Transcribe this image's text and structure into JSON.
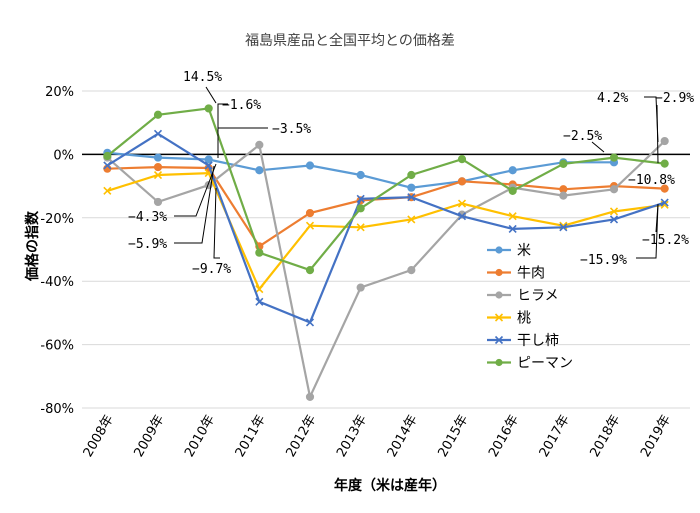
{
  "chart_data": {
    "type": "line",
    "title": "福島県産品と全国平均との価格差",
    "xlabel": "年度（米は産年）",
    "ylabel": "価格の指数",
    "categories": [
      "2008年",
      "2009年",
      "2010年",
      "2011年",
      "2012年",
      "2013年",
      "2014年",
      "2015年",
      "2016年",
      "2017年",
      "2018年",
      "2019年"
    ],
    "yticks": [
      "20%",
      "0%",
      "-20%",
      "-40%",
      "-60%",
      "-80%"
    ],
    "ylim": [
      -80,
      20
    ],
    "legend_position": "right",
    "series": [
      {
        "name": "米",
        "color": "#5B9BD5",
        "marker": "circle",
        "values": [
          0.5,
          -1.0,
          -1.6,
          -5.0,
          -3.5,
          -6.5,
          -10.5,
          -8.5,
          -5.0,
          -2.5,
          -2.5,
          null
        ]
      },
      {
        "name": "牛肉",
        "color": "#ED7D31",
        "marker": "circle",
        "values": [
          -4.5,
          -4.0,
          -4.3,
          -29.0,
          -18.5,
          -14.5,
          -13.5,
          -8.5,
          -9.5,
          -11.0,
          -10.0,
          -10.8
        ]
      },
      {
        "name": "ヒラメ",
        "color": "#A5A5A5",
        "marker": "circle",
        "values": [
          -1.0,
          -15.0,
          -9.7,
          3.0,
          -76.5,
          -42.0,
          -36.5,
          -19.0,
          -10.5,
          -13.0,
          -11.0,
          4.2
        ]
      },
      {
        "name": "桃",
        "color": "#FFC000",
        "marker": "x",
        "values": [
          -11.5,
          -6.5,
          -5.9,
          -42.5,
          -22.5,
          -23.0,
          -20.5,
          -15.5,
          -19.5,
          -22.5,
          -18.0,
          -15.9
        ]
      },
      {
        "name": "干し柿",
        "color": "#4472C4",
        "marker": "x",
        "values": [
          -3.5,
          6.5,
          -3.5,
          -46.5,
          -53.0,
          -14.0,
          -13.5,
          -19.5,
          -23.5,
          -23.0,
          -20.5,
          -15.2
        ]
      },
      {
        "name": "ピーマン",
        "color": "#70AD47",
        "marker": "circle",
        "values": [
          -0.5,
          12.5,
          14.5,
          -31.0,
          -36.5,
          -17.0,
          -6.5,
          -1.5,
          -11.5,
          -3.0,
          -1.0,
          -2.9
        ]
      }
    ],
    "annotations": [
      "14.5%",
      "−1.6%",
      "−3.5%",
      "−4.3%",
      "−5.9%",
      "−9.7%",
      "4.2%",
      "−2.9%",
      "−2.5%",
      "−10.8%",
      "−15.2%",
      "−15.9%"
    ]
  }
}
